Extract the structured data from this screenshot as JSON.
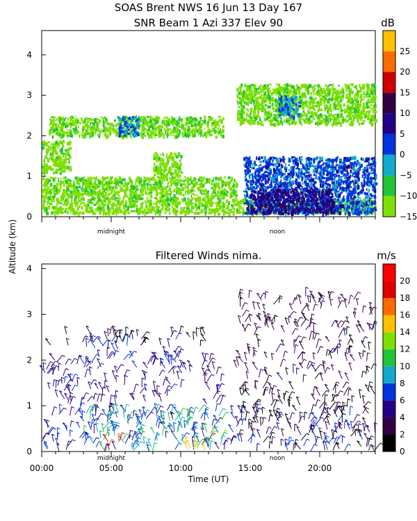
{
  "header": {
    "title_line1": "SOAS Brent NWS  16 Jun 13 Day 167",
    "title_line2": "SNR Beam 1 Azi 337 Elev 90"
  },
  "shared": {
    "ylabel": "Altitude (km)",
    "xlabel": "Time (UT)",
    "x_ticks": [
      "00:00",
      "05:00",
      "10:00",
      "15:00",
      "20:00"
    ],
    "x_tick_values": [
      0,
      5,
      10,
      15,
      20
    ],
    "marker_midnight": "midnight",
    "marker_noon": "noon"
  },
  "colors": {
    "snr_scale": [
      "#7ee000",
      "#22c43a",
      "#11aacc",
      "#0033dd",
      "#220088",
      "#330044",
      "#cc0000",
      "#ff6a00",
      "#ffc000"
    ],
    "wind_scale": [
      "#000000",
      "#330044",
      "#220088",
      "#0033dd",
      "#11aacc",
      "#22c43a",
      "#7ee000",
      "#ffc000",
      "#ff6a00",
      "#dd0000",
      "#ff0000"
    ]
  },
  "chart_data": [
    {
      "type": "heatmap",
      "title": "",
      "xlabel": "",
      "ylabel": "Altitude (km)",
      "xlim": [
        0,
        24
      ],
      "ylim": [
        0,
        4.6
      ],
      "y_ticks": [
        "0",
        "1",
        "2",
        "3",
        "4"
      ],
      "y_tick_values": [
        0,
        1,
        2,
        3,
        4
      ],
      "colorbar": {
        "unit": "dB",
        "tick_labels": [
          "25",
          "20",
          "15",
          "10",
          "5",
          "0",
          "−5",
          "−10",
          "−15"
        ],
        "tick_values": [
          25,
          20,
          15,
          10,
          5,
          0,
          -5,
          -10,
          -15
        ],
        "range": [
          -15,
          30
        ]
      },
      "regions": [
        {
          "x": [
            0.0,
            24.0
          ],
          "y": [
            0.1,
            0.45
          ],
          "snr": -13
        },
        {
          "x": [
            0.0,
            14.0
          ],
          "y": [
            0.45,
            1.0
          ],
          "snr": -12
        },
        {
          "x": [
            14.5,
            24.0
          ],
          "y": [
            0.1,
            1.5
          ],
          "snr": 2
        },
        {
          "x": [
            15.0,
            21.0
          ],
          "y": [
            0.1,
            0.7
          ],
          "snr": 8
        },
        {
          "x": [
            0.5,
            13.0
          ],
          "y": [
            2.0,
            2.5
          ],
          "snr": -12
        },
        {
          "x": [
            14.0,
            24.0
          ],
          "y": [
            2.3,
            3.3
          ],
          "snr": -12
        },
        {
          "x": [
            5.5,
            7.0
          ],
          "y": [
            2.0,
            2.5
          ],
          "snr": 0
        },
        {
          "x": [
            17.0,
            18.5
          ],
          "y": [
            2.5,
            3.0
          ],
          "snr": 0
        },
        {
          "x": [
            0.0,
            2.0
          ],
          "y": [
            1.1,
            1.9
          ],
          "snr": -13
        },
        {
          "x": [
            8.0,
            10.0
          ],
          "y": [
            1.0,
            1.6
          ],
          "snr": -13
        }
      ]
    },
    {
      "type": "scatter",
      "title": "Filtered Winds nima.",
      "xlabel": "Time (UT)",
      "ylabel": "Altitude (km)",
      "xlim": [
        0,
        24
      ],
      "ylim": [
        0,
        4.1
      ],
      "y_ticks": [
        "0",
        "1",
        "2",
        "3",
        "4"
      ],
      "y_tick_values": [
        0,
        1,
        2,
        3,
        4
      ],
      "colorbar": {
        "unit": "m/s",
        "tick_labels": [
          "20",
          "18",
          "16",
          "14",
          "12",
          "10",
          "8",
          "6",
          "4",
          "2",
          "0"
        ],
        "tick_values": [
          20,
          18,
          16,
          14,
          12,
          10,
          8,
          6,
          4,
          2,
          0
        ],
        "range": [
          0,
          22
        ]
      },
      "grid": false,
      "legend": "none",
      "wind_regions": [
        {
          "x": [
            0.0,
            24.0
          ],
          "y": [
            0.0,
            0.9
          ],
          "speed": 6
        },
        {
          "x": [
            3.0,
            13.0
          ],
          "y": [
            0.0,
            0.9
          ],
          "speed": 10
        },
        {
          "x": [
            14.0,
            24.0
          ],
          "y": [
            0.0,
            1.4
          ],
          "speed": 2
        },
        {
          "x": [
            0.0,
            13.0
          ],
          "y": [
            1.0,
            2.0
          ],
          "speed": 5
        },
        {
          "x": [
            3.0,
            10.0
          ],
          "y": [
            1.8,
            2.5
          ],
          "speed": 6
        },
        {
          "x": [
            0.0,
            12.0
          ],
          "y": [
            2.3,
            2.6
          ],
          "speed": 2
        },
        {
          "x": [
            14.0,
            24.0
          ],
          "y": [
            1.5,
            3.4
          ],
          "speed": 3
        },
        {
          "x": [
            4.0,
            6.0
          ],
          "y": [
            0.0,
            0.3
          ],
          "speed": 18
        },
        {
          "x": [
            10.0,
            13.0
          ],
          "y": [
            0.0,
            0.4
          ],
          "speed": 14
        }
      ]
    }
  ]
}
